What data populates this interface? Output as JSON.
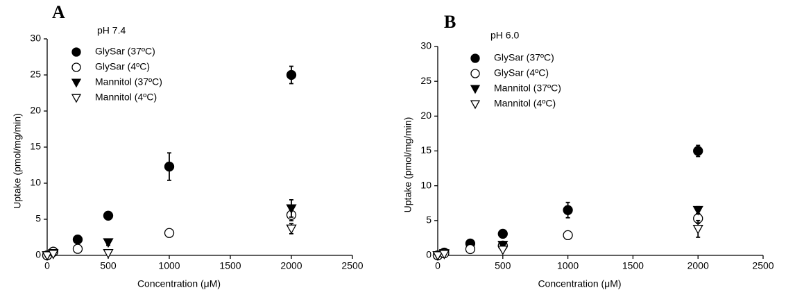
{
  "chart_data": [
    {
      "type": "scatter",
      "panel_label": "A",
      "annotation": "pH 7.4",
      "xlabel": "Concentration (μM)",
      "ylabel": "Uptake (pmol/mg/min)",
      "xlim": [
        0,
        2500
      ],
      "xticks": [
        0,
        500,
        1000,
        1500,
        2000,
        2500
      ],
      "ylim": [
        0,
        30
      ],
      "yticks": [
        0,
        5,
        10,
        15,
        20,
        25,
        30
      ],
      "series": [
        {
          "name": "GlySar (37ºC)",
          "shape": "circle",
          "filled": true,
          "color": "#000000",
          "x": [
            0,
            50,
            250,
            500,
            1000,
            2000
          ],
          "values": [
            0,
            0.5,
            2.2,
            5.5,
            12.3,
            25.0
          ],
          "errors": [
            null,
            null,
            0.3,
            0.5,
            1.9,
            1.2
          ]
        },
        {
          "name": "GlySar (4ºC)",
          "shape": "circle",
          "filled": false,
          "color": "#000000",
          "x": [
            0,
            50,
            250,
            1000,
            2000
          ],
          "values": [
            0,
            0.5,
            0.9,
            3.1,
            5.6
          ],
          "errors": [
            null,
            null,
            null,
            0.5,
            0.8
          ]
        },
        {
          "name": "Mannitol (37ºC)",
          "shape": "triangle-down",
          "filled": true,
          "color": "#000000",
          "x": [
            0,
            50,
            500,
            2000
          ],
          "values": [
            0,
            0.3,
            1.8,
            6.5
          ],
          "errors": [
            null,
            null,
            0.4,
            1.2
          ]
        },
        {
          "name": "Mannitol (4ºC)",
          "shape": "triangle-down",
          "filled": false,
          "color": "#000000",
          "x": [
            0,
            50,
            500,
            2000
          ],
          "values": [
            0,
            0.2,
            0.3,
            3.7
          ],
          "errors": [
            null,
            null,
            null,
            0.7
          ]
        }
      ]
    },
    {
      "type": "scatter",
      "panel_label": "B",
      "annotation": "pH 6.0",
      "xlabel": "Concentration (μM)",
      "ylabel": "Uptake (pmol/mg/min)",
      "xlim": [
        0,
        2500
      ],
      "xticks": [
        0,
        500,
        1000,
        1500,
        2000,
        2500
      ],
      "ylim": [
        0,
        30
      ],
      "yticks": [
        0,
        5,
        10,
        15,
        20,
        25,
        30
      ],
      "series": [
        {
          "name": "GlySar (37ºC)",
          "shape": "circle",
          "filled": true,
          "color": "#000000",
          "x": [
            0,
            50,
            250,
            500,
            1000,
            2000
          ],
          "values": [
            0,
            0.4,
            1.7,
            3.1,
            6.5,
            15.0
          ],
          "errors": [
            null,
            null,
            null,
            0.5,
            1.1,
            0.8
          ]
        },
        {
          "name": "GlySar (4ºC)",
          "shape": "circle",
          "filled": false,
          "color": "#000000",
          "x": [
            0,
            50,
            250,
            500,
            1000,
            2000
          ],
          "values": [
            0,
            0.3,
            0.9,
            1.4,
            2.9,
            5.3
          ],
          "errors": [
            null,
            null,
            null,
            null,
            0.4,
            0.7
          ]
        },
        {
          "name": "Mannitol (37ºC)",
          "shape": "triangle-down",
          "filled": true,
          "color": "#000000",
          "x": [
            0,
            50,
            500,
            2000
          ],
          "values": [
            0,
            0.3,
            1.5,
            6.5
          ],
          "errors": [
            null,
            null,
            null,
            0.5
          ]
        },
        {
          "name": "Mannitol (4ºC)",
          "shape": "triangle-down",
          "filled": false,
          "color": "#000000",
          "x": [
            0,
            50,
            500,
            2000
          ],
          "values": [
            0,
            0.2,
            0.8,
            3.8
          ],
          "errors": [
            null,
            null,
            null,
            1.2
          ]
        }
      ]
    }
  ]
}
